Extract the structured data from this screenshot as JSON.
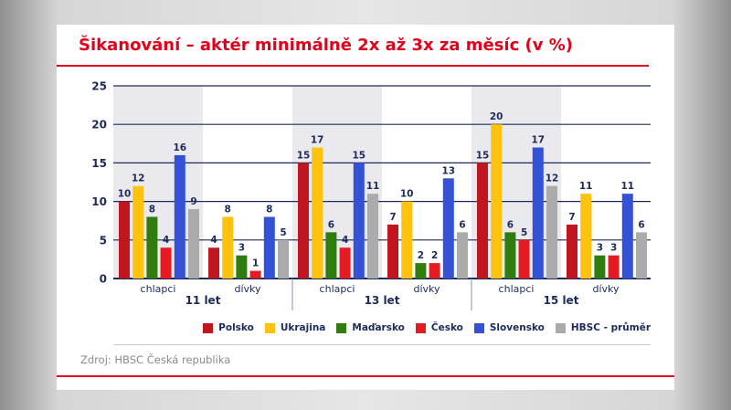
{
  "title": "Šikanování – aktér minimálně 2x až 3x za měsíc (v %)",
  "source": "Zdroj: HBSC Česká republika",
  "chart_data": {
    "type": "bar",
    "title": "Šikanování – aktér minimálně 2x až 3x za měsíc (v %)",
    "ylim": [
      0,
      25
    ],
    "yticks": [
      0,
      5,
      10,
      15,
      20,
      25
    ],
    "grid": true,
    "legend_position": "bottom-right",
    "age_groups": [
      "11 let",
      "13 let",
      "15 let"
    ],
    "categories": [
      "chlapci",
      "dívky",
      "chlapci",
      "dívky",
      "chlapci",
      "dívky"
    ],
    "series": [
      {
        "name": "Polsko",
        "color": "#c0161f",
        "values": [
          10,
          4,
          15,
          7,
          15,
          7
        ]
      },
      {
        "name": "Ukrajina",
        "color": "#ffc20e",
        "values": [
          12,
          8,
          17,
          10,
          20,
          11
        ]
      },
      {
        "name": "Maďarsko",
        "color": "#2f7d0e",
        "values": [
          8,
          3,
          6,
          2,
          6,
          3
        ]
      },
      {
        "name": "Česko",
        "color": "#e31b23",
        "values": [
          4,
          1,
          4,
          2,
          5,
          3
        ]
      },
      {
        "name": "Slovensko",
        "color": "#3551d6",
        "values": [
          16,
          8,
          15,
          13,
          17,
          11
        ]
      },
      {
        "name": "HBSC - průměr",
        "color": "#ababab",
        "values": [
          9,
          5,
          11,
          6,
          12,
          6
        ]
      }
    ]
  },
  "colors": {
    "accent": "#e2001a",
    "text": "#1c2b5a",
    "band": "#e9e9ee"
  }
}
